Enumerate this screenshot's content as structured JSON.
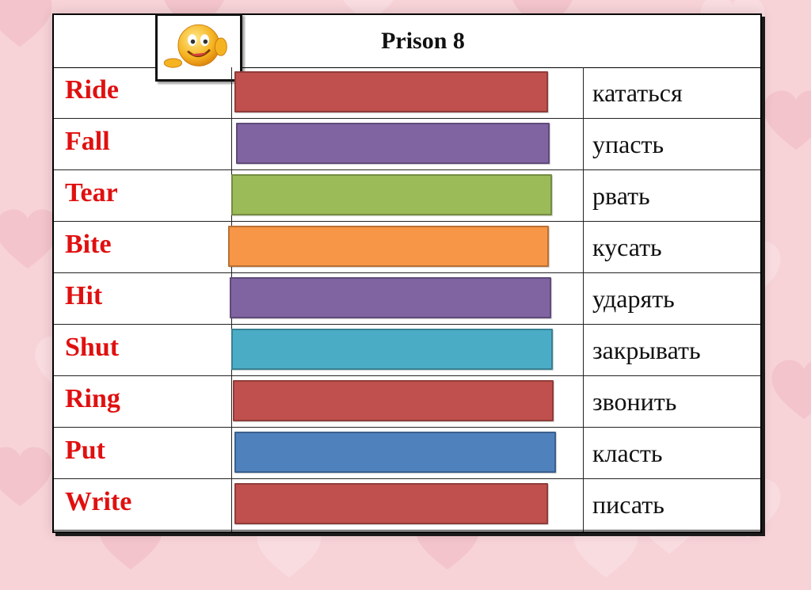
{
  "title": "Prison 8",
  "rows": [
    {
      "en": "Ride",
      "ru": "кататься",
      "color": "#c0504d"
    },
    {
      "en": "Fall",
      "ru": "упасть",
      "color": "#8064a2"
    },
    {
      "en": "Tear",
      "ru": "рвать",
      "color": "#9bbb59"
    },
    {
      "en": "Bite",
      "ru": "кусать",
      "color": "#f79646"
    },
    {
      "en": "Hit",
      "ru": "ударять",
      "color": "#8064a2"
    },
    {
      "en": "Shut",
      "ru": "закрывать",
      "color": "#4bacc6"
    },
    {
      "en": "Ring",
      "ru": "звонить",
      "color": "#c0504d"
    },
    {
      "en": "Put",
      "ru": "класть",
      "color": "#4f81bd"
    },
    {
      "en": "Write",
      "ru": "писать",
      "color": "#c0504d"
    }
  ],
  "icons": {
    "emoji": "winking-smiley-icon"
  }
}
